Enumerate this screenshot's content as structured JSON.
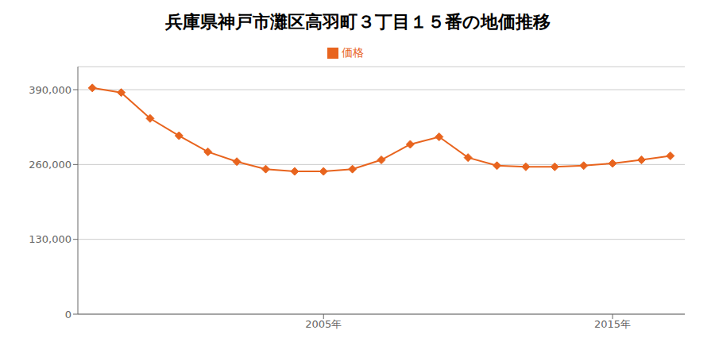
{
  "chart_data": {
    "type": "line",
    "title": "兵庫県神戸市灘区高羽町３丁目１５番の地価推移",
    "x": [
      1997,
      1998,
      1999,
      2000,
      2001,
      2002,
      2003,
      2004,
      2005,
      2006,
      2007,
      2008,
      2009,
      2010,
      2011,
      2012,
      2013,
      2014,
      2015,
      2016,
      2017
    ],
    "series": [
      {
        "name": "価格",
        "color": "#e8641e",
        "marker": "diamond",
        "values": [
          393000,
          385000,
          340000,
          310000,
          282000,
          265000,
          252000,
          248000,
          248000,
          252000,
          268000,
          295000,
          308000,
          272000,
          258000,
          256000,
          256000,
          258000,
          262000,
          268000,
          275000
        ]
      }
    ],
    "xlim": [
      1996.5,
      2017.5
    ],
    "xticks": [
      {
        "value": 2005,
        "label": "2005年"
      },
      {
        "value": 2015,
        "label": "2015年"
      }
    ],
    "ylim": [
      0,
      430000
    ],
    "yticks": [
      0,
      {
        "value": 130000,
        "label": "130,000"
      },
      {
        "value": 260000,
        "label": "260,000"
      },
      {
        "value": 390000,
        "label": "390,000"
      }
    ],
    "grid": true
  }
}
